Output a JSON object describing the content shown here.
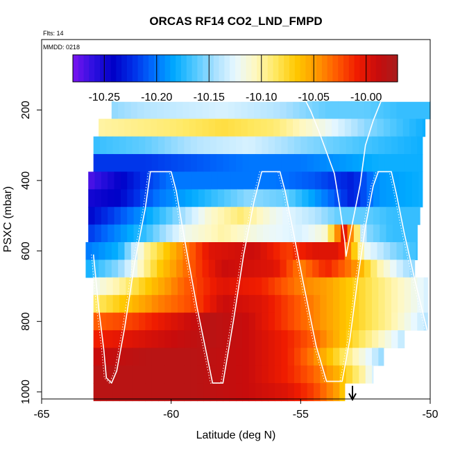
{
  "chart_data": {
    "type": "heatmap",
    "title": "ORCAS RF14 CO2_LND_FMPD",
    "annotations": {
      "flights": "Flts: 14",
      "date": "MMDD: 0218"
    },
    "xlabel": "Latitude (deg N)",
    "ylabel": "PSXC (mbar)",
    "xlim": [
      -65,
      -50
    ],
    "ylim": [
      1020,
      0
    ],
    "x_ticks": [
      -65,
      -60,
      -55,
      -50
    ],
    "x_tick_labels": [
      "-65",
      "-60",
      "-55",
      "-50"
    ],
    "y_ticks": [
      200,
      400,
      600,
      800,
      1000
    ],
    "y_tick_labels": [
      "200",
      "400",
      "600",
      "800",
      "1000"
    ],
    "colorbar": {
      "range": [
        -10.28,
        -9.97
      ],
      "ticks": [
        -10.25,
        -10.2,
        -10.15,
        -10.1,
        -10.05,
        -10.0
      ],
      "tick_labels": [
        "-10.25",
        "-10.20",
        "-10.15",
        "-10.10",
        "-10.05",
        "-10.00"
      ],
      "colors": [
        "#7a14f0",
        "#2d10e0",
        "#0000c8",
        "#0030e8",
        "#0070ff",
        "#00aaff",
        "#50c8ff",
        "#a8e0ff",
        "#e8f8ff",
        "#fff8c0",
        "#ffe860",
        "#ffc800",
        "#ff9a00",
        "#ff5a00",
        "#f01c00",
        "#c80c0c",
        "#a81c1c"
      ]
    },
    "levels_mbar": [
      200,
      250,
      300,
      350,
      400,
      450,
      500,
      550,
      600,
      650,
      700,
      750,
      800,
      850,
      900,
      950,
      1000
    ],
    "layers": [
      {
        "p": 200,
        "lat_min": -62.3,
        "lat_max": -50.0,
        "points": [
          [
            -62.3,
            -10.15
          ],
          [
            -61,
            -10.14
          ],
          [
            -58,
            -10.13
          ],
          [
            -56,
            -10.14
          ],
          [
            -54,
            -10.16
          ],
          [
            -52.5,
            -10.16
          ],
          [
            -51.2,
            -10.17
          ]
        ]
      },
      {
        "p": 250,
        "lat_min": -62.8,
        "lat_max": -50.2,
        "points": [
          [
            -62.8,
            -10.1
          ],
          [
            -60,
            -10.09
          ],
          [
            -58,
            -10.08
          ],
          [
            -56,
            -10.09
          ],
          [
            -54,
            -10.12
          ],
          [
            -52.5,
            -10.15
          ],
          [
            -51,
            -10.17
          ],
          [
            -50.2,
            -10.18
          ]
        ]
      },
      {
        "p": 300,
        "lat_min": -63.0,
        "lat_max": -50.3,
        "points": [
          [
            -63,
            -10.17
          ],
          [
            -61,
            -10.16
          ],
          [
            -59,
            -10.14
          ],
          [
            -57,
            -10.13
          ],
          [
            -55,
            -10.15
          ],
          [
            -53.5,
            -10.16
          ],
          [
            -52,
            -10.17
          ],
          [
            -50.3,
            -10.18
          ]
        ]
      },
      {
        "p": 350,
        "lat_min": -63.0,
        "lat_max": -50.3,
        "points": [
          [
            -63,
            -10.22
          ],
          [
            -61,
            -10.22
          ],
          [
            -59,
            -10.21
          ],
          [
            -57,
            -10.2
          ],
          [
            -55,
            -10.2
          ],
          [
            -53.5,
            -10.19
          ],
          [
            -52,
            -10.18
          ],
          [
            -50.3,
            -10.18
          ]
        ]
      },
      {
        "p": 400,
        "lat_min": -63.2,
        "lat_max": -50.3,
        "points": [
          [
            -63.2,
            -10.27
          ],
          [
            -62.3,
            -10.25
          ],
          [
            -61,
            -10.22
          ],
          [
            -60,
            -10.2
          ],
          [
            -58,
            -10.2
          ],
          [
            -56,
            -10.2
          ],
          [
            -54.5,
            -10.21
          ],
          [
            -53,
            -10.23
          ],
          [
            -52,
            -10.19
          ],
          [
            -50.3,
            -10.18
          ]
        ]
      },
      {
        "p": 450,
        "lat_min": -63.2,
        "lat_max": -50.3,
        "points": [
          [
            -63.2,
            -10.25
          ],
          [
            -62,
            -10.24
          ],
          [
            -60.5,
            -10.2
          ],
          [
            -59,
            -10.18
          ],
          [
            -57,
            -10.15
          ],
          [
            -55.5,
            -10.16
          ],
          [
            -54,
            -10.2
          ],
          [
            -53,
            -10.23
          ],
          [
            -52,
            -10.19
          ],
          [
            -50.3,
            -10.18
          ]
        ]
      },
      {
        "p": 500,
        "lat_min": -63.2,
        "lat_max": -50.4,
        "points": [
          [
            -63.2,
            -10.24
          ],
          [
            -61.5,
            -10.2
          ],
          [
            -60,
            -10.16
          ],
          [
            -58.5,
            -10.11
          ],
          [
            -57.3,
            -10.09
          ],
          [
            -56,
            -10.12
          ],
          [
            -54.5,
            -10.14
          ],
          [
            -53.5,
            -10.16
          ],
          [
            -52.5,
            -10.16
          ],
          [
            -51.5,
            -10.17
          ],
          [
            -50.4,
            -10.17
          ]
        ]
      },
      {
        "p": 550,
        "lat_min": -63.2,
        "lat_max": -50.5,
        "points": [
          [
            -63.2,
            -10.22
          ],
          [
            -61,
            -10.17
          ],
          [
            -59.5,
            -10.12
          ],
          [
            -58,
            -10.1
          ],
          [
            -56.5,
            -10.12
          ],
          [
            -55,
            -10.13
          ],
          [
            -54,
            -10.11
          ],
          [
            -53.3,
            -10.0
          ],
          [
            -52.5,
            -10.15
          ],
          [
            -51.5,
            -10.17
          ],
          [
            -50.5,
            -10.17
          ]
        ]
      },
      {
        "p": 600,
        "lat_min": -63.3,
        "lat_max": -50.5,
        "points": [
          [
            -63.3,
            -10.2
          ],
          [
            -62,
            -10.18
          ],
          [
            -61,
            -10.1
          ],
          [
            -60,
            -10.06
          ],
          [
            -58.5,
            -10.0
          ],
          [
            -56.8,
            -9.99
          ],
          [
            -55.5,
            -10.02
          ],
          [
            -54.5,
            -10.0
          ],
          [
            -53.5,
            -10.0
          ],
          [
            -52.5,
            -10.12
          ],
          [
            -51.5,
            -10.15
          ],
          [
            -50.5,
            -10.17
          ]
        ]
      },
      {
        "p": 650,
        "lat_min": -63.3,
        "lat_max": -50.6,
        "points": [
          [
            -63.3,
            -10.18
          ],
          [
            -62,
            -10.15
          ],
          [
            -60.5,
            -10.07
          ],
          [
            -59,
            -10.02
          ],
          [
            -58,
            -9.99
          ],
          [
            -56,
            -10.0
          ],
          [
            -55,
            -10.04
          ],
          [
            -54,
            -10.01
          ],
          [
            -53,
            -10.04
          ],
          [
            -52,
            -10.1
          ],
          [
            -51,
            -10.14
          ],
          [
            -50.6,
            -10.15
          ]
        ]
      },
      {
        "p": 700,
        "lat_min": -63.0,
        "lat_max": -50.1,
        "points": [
          [
            -63,
            -10.12
          ],
          [
            -62,
            -10.1
          ],
          [
            -61,
            -10.07
          ],
          [
            -59.5,
            -10.03
          ],
          [
            -58,
            -10.0
          ],
          [
            -56.5,
            -10.01
          ],
          [
            -55,
            -10.04
          ],
          [
            -54,
            -10.05
          ],
          [
            -53,
            -10.07
          ],
          [
            -52,
            -10.09
          ],
          [
            -51,
            -10.11
          ],
          [
            -50.1,
            -10.13
          ]
        ]
      },
      {
        "p": 750,
        "lat_min": -63.0,
        "lat_max": -50.1,
        "points": [
          [
            -63,
            -10.09
          ],
          [
            -62,
            -10.07
          ],
          [
            -60.5,
            -10.04
          ],
          [
            -59,
            -10.02
          ],
          [
            -58,
            -9.99
          ],
          [
            -56.5,
            -10.0
          ],
          [
            -55,
            -10.03
          ],
          [
            -54,
            -10.05
          ],
          [
            -53,
            -10.07
          ],
          [
            -52,
            -10.09
          ],
          [
            -51,
            -10.11
          ],
          [
            -50.1,
            -10.13
          ]
        ]
      },
      {
        "p": 800,
        "lat_min": -63.0,
        "lat_max": -50.1,
        "points": [
          [
            -63,
            -10.03
          ],
          [
            -61.5,
            -10.02
          ],
          [
            -60,
            -10.0
          ],
          [
            -58.5,
            -9.98
          ],
          [
            -57,
            -9.99
          ],
          [
            -55.5,
            -10.02
          ],
          [
            -54.5,
            -10.04
          ],
          [
            -53.5,
            -10.06
          ],
          [
            -52.5,
            -10.08
          ],
          [
            -51.5,
            -10.1
          ],
          [
            -50.1,
            -10.14
          ]
        ]
      },
      {
        "p": 850,
        "lat_min": -63.0,
        "lat_max": -51.0,
        "points": [
          [
            -63,
            -10.01
          ],
          [
            -61.5,
            -10.0
          ],
          [
            -60,
            -9.99
          ],
          [
            -58.5,
            -9.98
          ],
          [
            -57,
            -9.99
          ],
          [
            -55.5,
            -10.01
          ],
          [
            -54.5,
            -10.03
          ],
          [
            -53.5,
            -10.06
          ],
          [
            -52.5,
            -10.09
          ],
          [
            -51.5,
            -10.12
          ],
          [
            -51,
            -10.14
          ]
        ]
      },
      {
        "p": 900,
        "lat_min": -63.0,
        "lat_max": -51.8,
        "points": [
          [
            -63,
            -9.99
          ],
          [
            -61,
            -9.98
          ],
          [
            -59,
            -9.98
          ],
          [
            -57,
            -9.99
          ],
          [
            -55.5,
            -10.01
          ],
          [
            -54.5,
            -10.04
          ],
          [
            -53.5,
            -10.08
          ],
          [
            -52.5,
            -10.12
          ],
          [
            -51.8,
            -10.15
          ]
        ]
      },
      {
        "p": 950,
        "lat_min": -63.0,
        "lat_max": -52.2,
        "points": [
          [
            -63,
            -9.98
          ],
          [
            -61,
            -9.98
          ],
          [
            -59,
            -9.98
          ],
          [
            -57,
            -9.99
          ],
          [
            -55.5,
            -10.01
          ],
          [
            -54.5,
            -10.03
          ],
          [
            -53.5,
            -10.06
          ],
          [
            -52.6,
            -10.1
          ],
          [
            -52.2,
            -10.13
          ]
        ]
      },
      {
        "p": 1000,
        "lat_min": -63.0,
        "lat_max": -53.3,
        "points": [
          [
            -63,
            -9.98
          ],
          [
            -61,
            -9.98
          ],
          [
            -59,
            -9.98
          ],
          [
            -57,
            -9.99
          ],
          [
            -55.5,
            -10.0
          ],
          [
            -54.5,
            -10.02
          ],
          [
            -53.6,
            -10.05
          ],
          [
            -53.3,
            -10.07
          ]
        ]
      }
    ],
    "flight_track": [
      [
        -63.0,
        610
      ],
      [
        -62.8,
        760
      ],
      [
        -62.6,
        880
      ],
      [
        -62.5,
        960
      ],
      [
        -62.3,
        975
      ],
      [
        -62.1,
        940
      ],
      [
        -61.8,
        820
      ],
      [
        -61.4,
        630
      ],
      [
        -61.0,
        480
      ],
      [
        -60.8,
        375
      ],
      [
        -60.0,
        375
      ],
      [
        -59.8,
        430
      ],
      [
        -59.5,
        560
      ],
      [
        -59.0,
        760
      ],
      [
        -58.4,
        975
      ],
      [
        -58.0,
        975
      ],
      [
        -57.6,
        800
      ],
      [
        -57.2,
        610
      ],
      [
        -56.8,
        460
      ],
      [
        -56.5,
        375
      ],
      [
        -55.8,
        375
      ],
      [
        -55.6,
        430
      ],
      [
        -55.3,
        540
      ],
      [
        -54.9,
        690
      ],
      [
        -54.4,
        870
      ],
      [
        -54.0,
        970
      ],
      [
        -53.4,
        970
      ],
      [
        -53.1,
        850
      ],
      [
        -52.8,
        680
      ],
      [
        -52.5,
        530
      ],
      [
        -52.2,
        415
      ],
      [
        -52.0,
        375
      ],
      [
        -51.5,
        375
      ],
      [
        -51.3,
        440
      ],
      [
        -51.0,
        550
      ],
      [
        -50.6,
        680
      ],
      [
        -50.2,
        800
      ],
      [
        -50.0,
        860
      ]
    ],
    "upper_track": [
      [
        -62.2,
        175
      ],
      [
        -54.8,
        175
      ],
      [
        -54.6,
        205
      ],
      [
        -54.3,
        260
      ],
      [
        -54.0,
        320
      ],
      [
        -53.7,
        380
      ],
      [
        -53.5,
        470
      ],
      [
        -53.3,
        570
      ],
      [
        -53.25,
        615
      ],
      [
        -53.0,
        520
      ],
      [
        -52.7,
        410
      ],
      [
        -52.5,
        300
      ],
      [
        -52.2,
        230
      ],
      [
        -51.9,
        175
      ],
      [
        -50.0,
        175
      ]
    ],
    "arrow_latitude": -53.0
  }
}
